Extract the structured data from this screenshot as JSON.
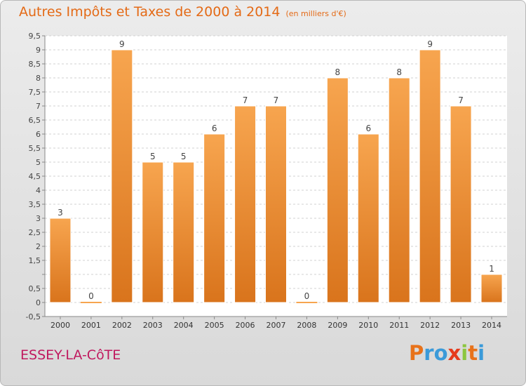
{
  "header": {
    "title": "Autres Impôts et Taxes de 2000 à 2014",
    "unit": "(en milliers d'€)"
  },
  "footer": {
    "commune": "ESSEY-LA-CôTE",
    "brand_letters": [
      "P",
      "r",
      "o",
      "x",
      "i",
      "t",
      "i"
    ],
    "brand_colors": [
      "#e8721a",
      "#3a9ad9",
      "#3a9ad9",
      "#e63a1c",
      "#8cc63f",
      "#e8721a",
      "#3a9ad9"
    ]
  },
  "colors": {
    "bar_light": "#f7a54f",
    "bar_dark": "#d9741c",
    "title": "#e46a16",
    "commune": "#c0185e"
  },
  "chart_data": {
    "type": "bar",
    "categories": [
      "2000",
      "2001",
      "2002",
      "2003",
      "2004",
      "2005",
      "2006",
      "2007",
      "2008",
      "2009",
      "2010",
      "2011",
      "2012",
      "2013",
      "2014"
    ],
    "values": [
      3,
      0,
      9,
      5,
      5,
      6,
      7,
      7,
      0,
      8,
      6,
      8,
      9,
      7,
      1
    ],
    "data_labels": [
      "3",
      "0",
      "9",
      "5",
      "5",
      "6",
      "7",
      "7",
      "0",
      "8",
      "6",
      "8",
      "9",
      "7",
      "1"
    ],
    "ylim": [
      -0.5,
      9.5
    ],
    "y_ticks": [
      "-0,5",
      "0",
      "0,5",
      "",
      "1,5",
      "2",
      "2,5",
      "3",
      "3,5",
      "4",
      "4,5",
      "5",
      "5,5",
      "6",
      "6,5",
      "7",
      "7,5",
      "8",
      "8,5",
      "9",
      "9,5"
    ],
    "y_tick_values": [
      -0.5,
      0,
      0.5,
      1,
      1.5,
      2,
      2.5,
      3,
      3.5,
      4,
      4.5,
      5,
      5.5,
      6,
      6.5,
      7,
      7.5,
      8,
      8.5,
      9,
      9.5
    ],
    "grid": true,
    "title": "Autres Impôts et Taxes de 2000 à 2014",
    "xlabel": "",
    "ylabel": ""
  }
}
